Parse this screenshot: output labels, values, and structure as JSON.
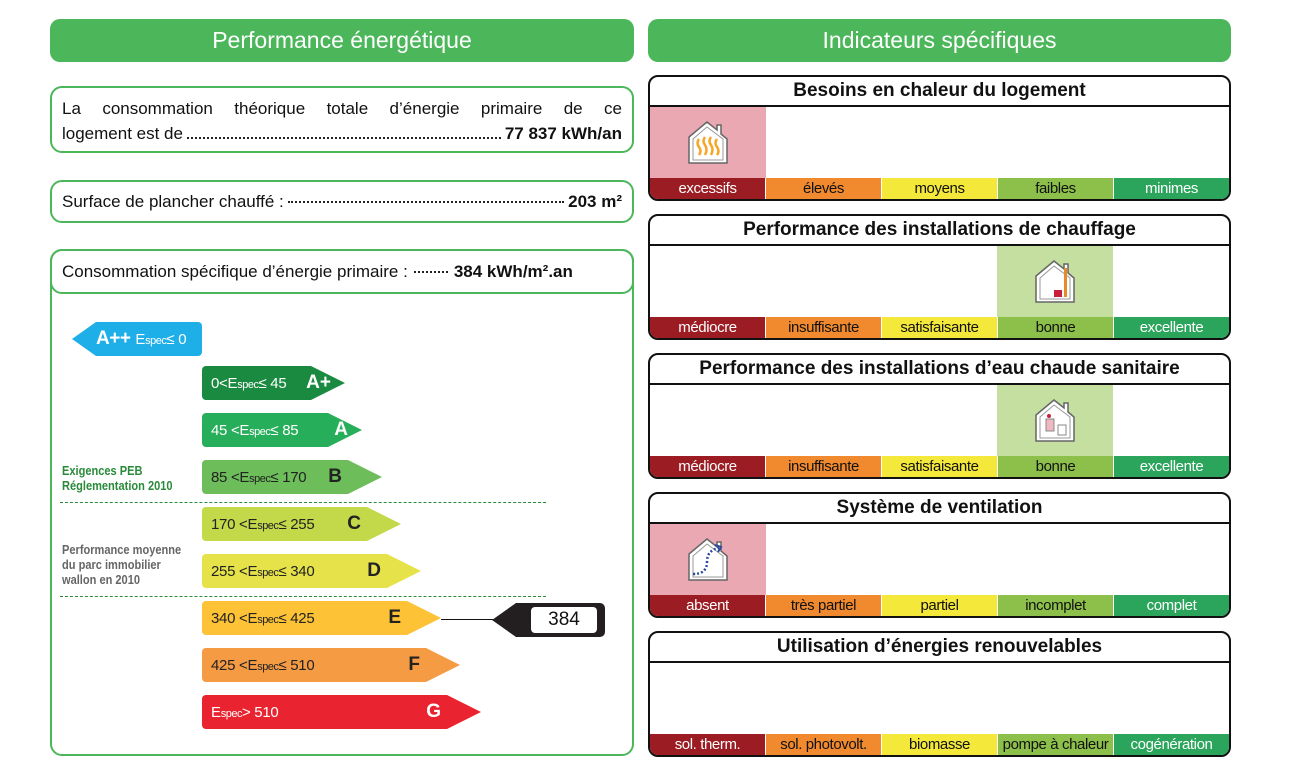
{
  "left": {
    "title": "Performance énergétique",
    "consumption": {
      "text1": "La consommation théorique totale d’énergie primaire de ce",
      "text2": "logement est de",
      "value": "77 837 kWh/an"
    },
    "surface": {
      "label": "Surface de plancher chauffé :",
      "value": "203 m²"
    },
    "specific": {
      "label": "Consommation spécifique d’énergie primaire :",
      "value": "384 kWh/m².an"
    },
    "espec": {
      "e": "E",
      "sub": "spec"
    },
    "classes": [
      {
        "cls": "A++",
        "pre": "",
        "post": "≤ 0",
        "color": "#1eaee8"
      },
      {
        "cls": "A+",
        "pre": "0<",
        "post": "≤ 45",
        "color": "#1a8a41"
      },
      {
        "cls": "A",
        "pre": "45 <",
        "post": "≤ 85",
        "color": "#27ae5a"
      },
      {
        "cls": "B",
        "pre": "85 <",
        "post": "≤ 170",
        "color": "#6dbd5a"
      },
      {
        "cls": "C",
        "pre": "170 <",
        "post": "≤ 255",
        "color": "#c3d94a"
      },
      {
        "cls": "D",
        "pre": "255 <",
        "post": "≤ 340",
        "color": "#e6e24a"
      },
      {
        "cls": "E",
        "pre": "340 <",
        "post": "≤ 425",
        "color": "#fdc236"
      },
      {
        "cls": "F",
        "pre": "425 <",
        "post": "≤ 510",
        "color": "#f59b44"
      },
      {
        "cls": "G",
        "pre": "",
        "post": "> 510",
        "color": "#e92330"
      }
    ],
    "note_peb": [
      "Exigences PEB",
      "Réglementation 2010"
    ],
    "note_avg": [
      "Performance moyenne",
      "du parc immobilier",
      "wallon en 2010"
    ],
    "current_value": "384",
    "current_class": "E"
  },
  "right": {
    "title": "Indicateurs spécifiques",
    "panels": [
      {
        "title": "Besoins en chaleur du logement",
        "labels": [
          "excessifs",
          "élevés",
          "moyens",
          "faibles",
          "minimes"
        ],
        "selected": 0,
        "highlight": "#eaa8b3",
        "icon": "house-heat-icon"
      },
      {
        "title": "Performance des installations de chauffage",
        "labels": [
          "médiocre",
          "insuffisante",
          "satisfaisante",
          "bonne",
          "excellente"
        ],
        "selected": 3,
        "highlight": "#c5dfa0",
        "icon": "house-boiler-icon"
      },
      {
        "title": "Performance des installations d’eau chaude sanitaire",
        "labels": [
          "médiocre",
          "insuffisante",
          "satisfaisante",
          "bonne",
          "excellente"
        ],
        "selected": 3,
        "highlight": "#c5dfa0",
        "icon": "house-water-heater-icon"
      },
      {
        "title": "Système de ventilation",
        "labels": [
          "absent",
          "très partiel",
          "partiel",
          "incomplet",
          "complet"
        ],
        "selected": 0,
        "highlight": "#eaa8b3",
        "icon": "house-ventilation-icon"
      },
      {
        "title": "Utilisation d’énergies renouvelables",
        "labels": [
          "sol. therm.",
          "sol. photovolt.",
          "biomasse",
          "pompe à chaleur",
          "cogénération"
        ],
        "selected": null,
        "highlight": "",
        "icon": ""
      }
    ]
  }
}
